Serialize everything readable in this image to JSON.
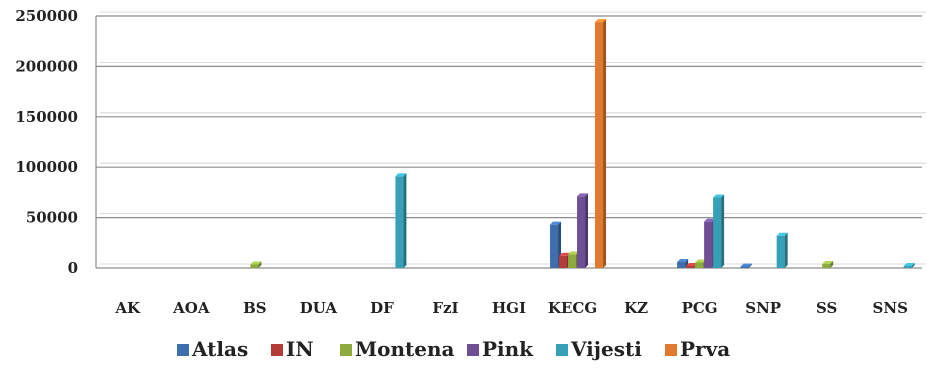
{
  "chart_data": {
    "type": "bar",
    "categories": [
      "AK",
      "AOA",
      "BS",
      "DUA",
      "DF",
      "FzI",
      "HGI",
      "KECG",
      "KZ",
      "PCG",
      "SNP",
      "SS",
      "SNS"
    ],
    "series": [
      {
        "name": "Atlas",
        "color": "#3E6EAD",
        "values": [
          0,
          0,
          0,
          0,
          0,
          0,
          0,
          43000,
          0,
          6000,
          1500,
          0,
          0
        ]
      },
      {
        "name": "IN",
        "color": "#B33B38",
        "values": [
          0,
          0,
          0,
          0,
          0,
          0,
          0,
          12000,
          0,
          2000,
          0,
          0,
          0
        ]
      },
      {
        "name": "Montena",
        "color": "#8DAA3F",
        "values": [
          0,
          0,
          3500,
          0,
          0,
          0,
          0,
          13500,
          0,
          5500,
          0,
          4000,
          0
        ]
      },
      {
        "name": "Pink",
        "color": "#6E4F95",
        "values": [
          0,
          0,
          0,
          0,
          0,
          0,
          0,
          71000,
          0,
          46000,
          0,
          0,
          0
        ]
      },
      {
        "name": "Vijesti",
        "color": "#35A0B6",
        "values": [
          0,
          0,
          0,
          0,
          91000,
          0,
          0,
          0,
          0,
          70000,
          32000,
          0,
          2000
        ]
      },
      {
        "name": "Prva",
        "color": "#E17A2E",
        "values": [
          0,
          0,
          0,
          0,
          0,
          0,
          0,
          244000,
          0,
          0,
          0,
          0,
          0
        ]
      }
    ],
    "yticks": [
      "0",
      "50000",
      "100000",
      "150000",
      "200000",
      "250000"
    ],
    "ylim": [
      0,
      250000
    ],
    "grid": true,
    "legend": "bottom"
  }
}
